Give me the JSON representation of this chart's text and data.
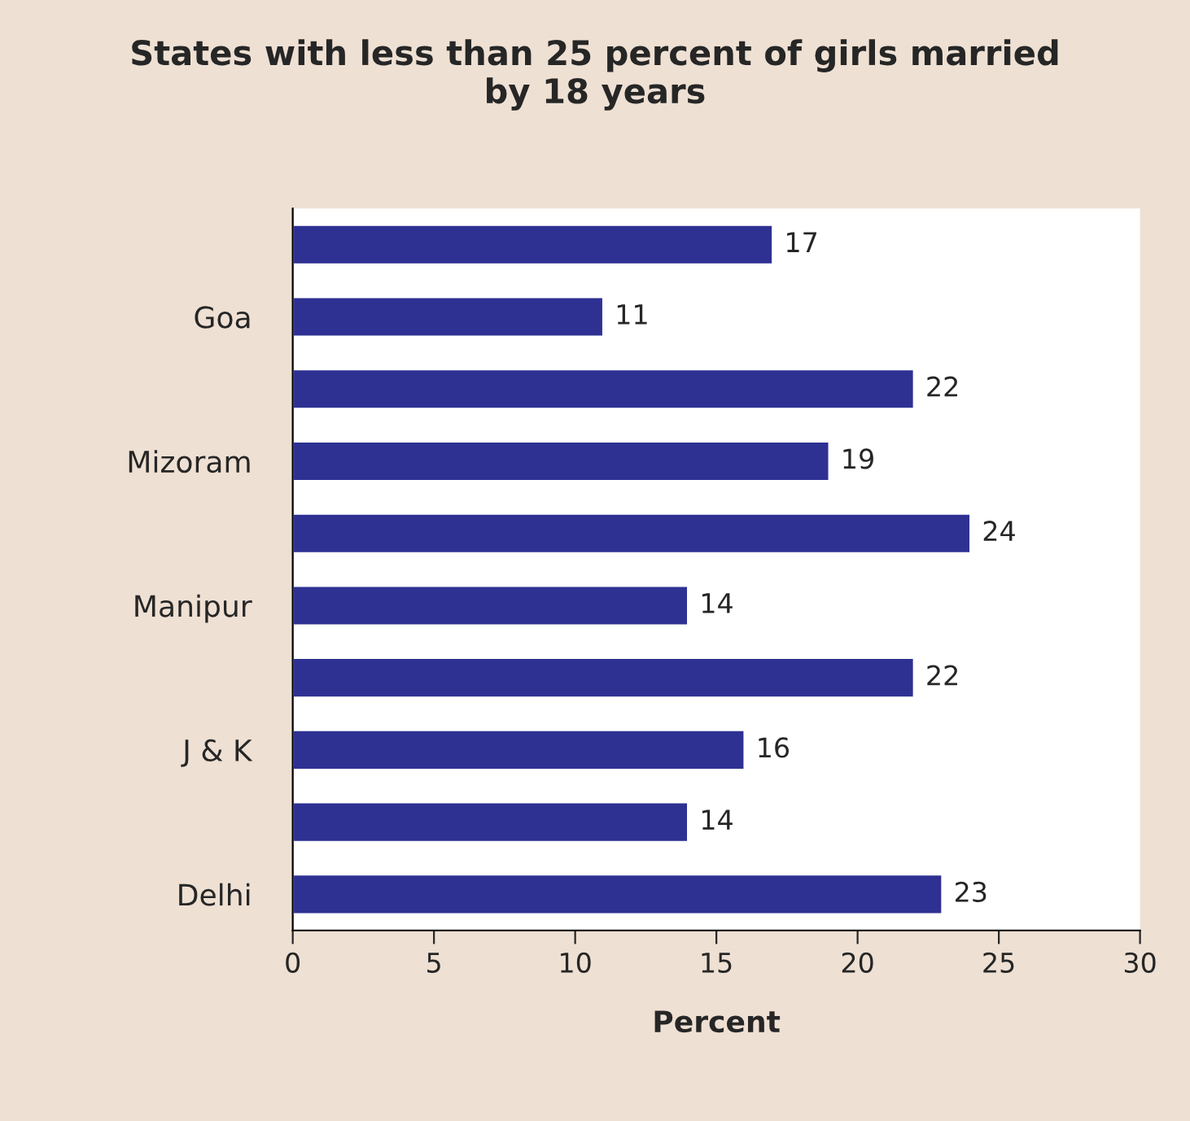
{
  "chart_data": {
    "type": "bar",
    "orientation": "horizontal",
    "title": "States with less than 25 percent of girls married\nby 18 years",
    "xlabel": "Percent",
    "categories": [
      null,
      "Goa",
      null,
      "Mizoram",
      null,
      "Manipur",
      null,
      "J & K",
      null,
      "Delhi"
    ],
    "values": [
      17,
      11,
      22,
      19,
      24,
      14,
      22,
      16,
      14,
      23
    ],
    "color": "#2e3192",
    "xlim": [
      0,
      30
    ],
    "xticks": [
      0,
      5,
      10,
      15,
      20,
      25,
      30
    ],
    "data_labels": true,
    "grid": false
  }
}
